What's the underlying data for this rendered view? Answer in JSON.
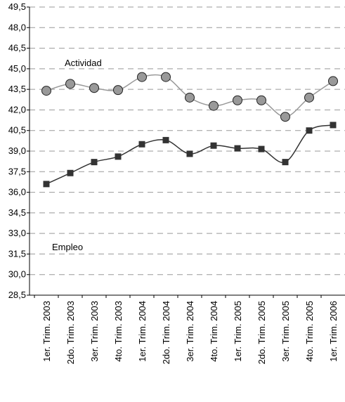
{
  "chart_data": {
    "type": "line",
    "categories": [
      "1er. Trim. 2003",
      "2do. Trim. 2003",
      "3er. Trim. 2003",
      "4to. Trim. 2003",
      "1er. Trim. 2004",
      "2do. Trim. 2004",
      "3er. Trim. 2004",
      "4to. Trim. 2004",
      "1er. Trim. 2005",
      "2do. Trim. 2005",
      "3er. Trim. 2005",
      "4to. Trim. 2005",
      "1er. Trim. 2006"
    ],
    "series": [
      {
        "name": "Actividad",
        "color": "#999999",
        "marker": "circle",
        "values": [
          43.4,
          43.9,
          43.6,
          43.45,
          44.4,
          44.4,
          42.9,
          42.3,
          42.7,
          42.7,
          41.5,
          42.9,
          44.1
        ]
      },
      {
        "name": "Empleo",
        "color": "#333333",
        "marker": "square",
        "values": [
          36.6,
          37.4,
          38.2,
          38.6,
          39.5,
          39.8,
          38.8,
          39.4,
          39.2,
          39.15,
          38.2,
          40.5,
          40.9
        ]
      }
    ],
    "ylim": [
      28.5,
      49.5
    ],
    "yticks": [
      {
        "value": 28.5,
        "label": "28,5"
      },
      {
        "value": 30,
        "label": "30,0"
      },
      {
        "value": 31.5,
        "label": "31,5"
      },
      {
        "value": 33,
        "label": "33,0"
      },
      {
        "value": 34.5,
        "label": "34,5"
      },
      {
        "value": 36,
        "label": "36,0"
      },
      {
        "value": 37.5,
        "label": "37,5"
      },
      {
        "value": 39,
        "label": "39,0"
      },
      {
        "value": 40.5,
        "label": "40,5"
      },
      {
        "value": 42,
        "label": "42,0"
      },
      {
        "value": 43.5,
        "label": "43,5"
      },
      {
        "value": 45,
        "label": "45,0"
      },
      {
        "value": 46.5,
        "label": "46,5"
      },
      {
        "value": 48,
        "label": "48,0"
      },
      {
        "value": 49.5,
        "label": "49,5"
      }
    ],
    "grid": true
  }
}
